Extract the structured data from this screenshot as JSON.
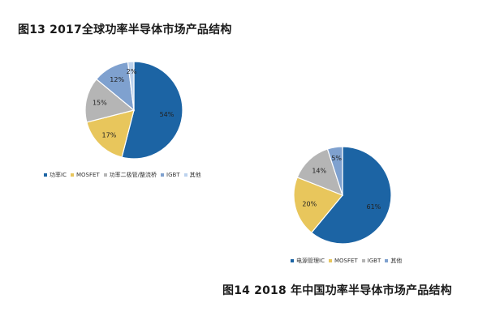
{
  "figure1": {
    "title": "图13  2017全球功率半导体市场产品结构"
  },
  "figure2": {
    "title": "图14  2018 年中国功率半导体市场产品结构"
  },
  "chart_data": [
    {
      "type": "pie",
      "title": "图13  2017全球功率半导体市场产品结构",
      "categories": [
        "功率IC",
        "MOSFET",
        "功率二极管/整流桥",
        "IGBT",
        "其他"
      ],
      "values": [
        54,
        17,
        15,
        12,
        2
      ],
      "labels": [
        "54%",
        "17%",
        "15%",
        "12%",
        "2%"
      ],
      "colors": [
        "#1c64a4",
        "#e8c65c",
        "#b5b5b5",
        "#7fa1cf",
        "#bcd2ed"
      ],
      "legend": "bottom"
    },
    {
      "type": "pie",
      "title": "图14  2018 年中国功率半导体市场产品结构",
      "categories": [
        "电源管理IC",
        "MOSFET",
        "IGBT",
        "其他"
      ],
      "values": [
        61,
        20,
        14,
        5
      ],
      "labels": [
        "61%",
        "20%",
        "14%",
        "5%"
      ],
      "colors": [
        "#1c64a4",
        "#e8c65c",
        "#b5b5b5",
        "#7fa1cf"
      ],
      "legend": "bottom"
    }
  ]
}
